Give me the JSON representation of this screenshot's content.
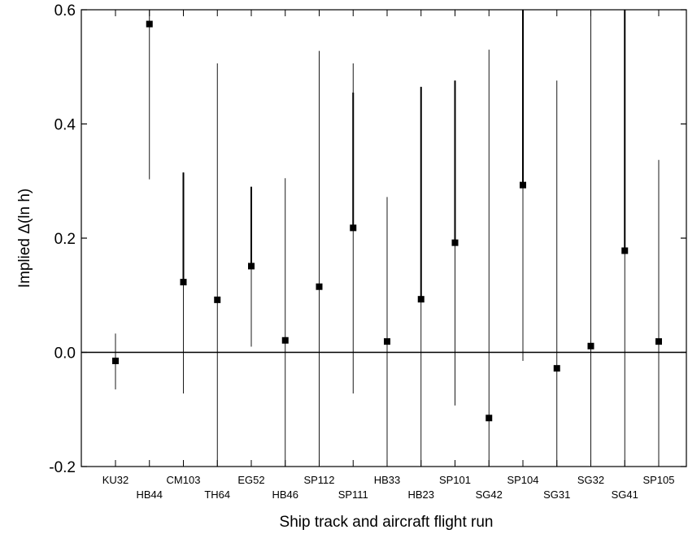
{
  "chart_data": {
    "type": "scatter",
    "ylabel": "Implied Δ(ln h)",
    "xlabel": "Ship track and aircraft flight run",
    "ylim": [
      -0.2,
      0.6
    ],
    "yticks": [
      -0.2,
      0.0,
      0.2,
      0.4,
      0.6
    ],
    "ytick_labels": [
      "-0.2",
      "0.0",
      "0.2",
      "0.4",
      "0.6"
    ],
    "zero_line": true,
    "grid": false,
    "categories": [
      "KU32",
      "HB44",
      "CM103",
      "TH64",
      "EG52",
      "HB46",
      "SP112",
      "SP111",
      "HB33",
      "HB23",
      "SP101",
      "SG42",
      "SP104",
      "SG31",
      "SG32",
      "SG41",
      "SP105"
    ],
    "values": [
      -0.015,
      0.575,
      0.123,
      0.092,
      0.151,
      0.021,
      0.115,
      0.218,
      0.019,
      0.093,
      0.192,
      -0.115,
      0.293,
      -0.028,
      0.011,
      0.178,
      0.019
    ],
    "error_low": [
      -0.065,
      0.303,
      -0.072,
      -0.2,
      0.01,
      -0.2,
      -0.2,
      -0.072,
      -0.2,
      -0.2,
      -0.093,
      -0.2,
      -0.015,
      -0.2,
      -0.2,
      -0.2,
      -0.2
    ],
    "error_high": [
      0.033,
      0.6,
      0.315,
      0.506,
      0.29,
      0.305,
      0.528,
      0.506,
      0.272,
      0.465,
      0.476,
      0.53,
      0.6,
      0.476,
      0.6,
      0.6,
      0.337
    ],
    "thick_bar_top": [
      null,
      null,
      0.315,
      null,
      0.29,
      null,
      null,
      0.455,
      null,
      0.465,
      0.476,
      null,
      0.6,
      null,
      null,
      0.6,
      null
    ],
    "marker": "square",
    "color": "#000000"
  }
}
